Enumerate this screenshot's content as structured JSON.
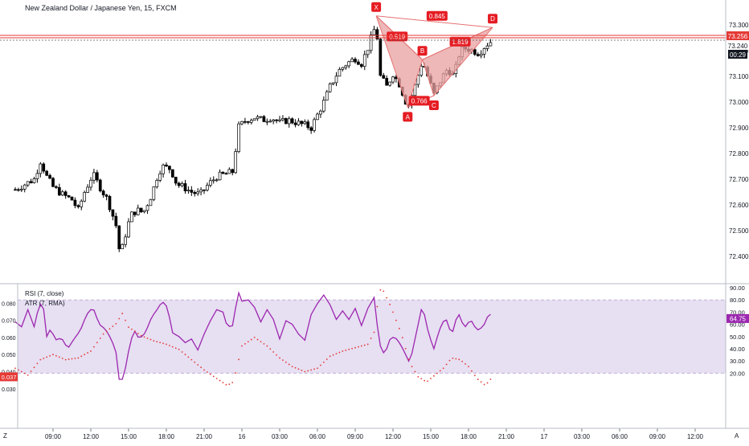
{
  "header": {
    "symbol_title": "New Zealand Dollar / Japanese Yen, 15, FXCM",
    "rsi_label": "RSI (7, close)",
    "atr_label": "ATR (7, RMA)",
    "time_label": "09:00",
    "corner_left": "Z",
    "corner_right": "A"
  },
  "colors": {
    "up_candle": "#ffffff",
    "down_candle": "#000000",
    "candle_border": "#000000",
    "pattern_fill": "#e8a0a0",
    "pattern_stroke": "#e57373",
    "point_label_bg": "#e51c23",
    "rsi_line": "#9c27b0",
    "rsi_band": "#e7dff2",
    "atr_dots": "#e53935",
    "price_line_red": "#e53935"
  },
  "price_badges": {
    "high_line": "73.256",
    "current": "73.240",
    "countdown": "00:29"
  },
  "rsi_badge": "64.75",
  "atr_badge": "0.037",
  "pattern": {
    "points": [
      {
        "label": "X",
        "time": 1540,
        "price": 73.335
      },
      {
        "label": "A",
        "time": 1690,
        "price": 72.98
      },
      {
        "label": "B",
        "time": 1760,
        "price": 73.165
      },
      {
        "label": "C",
        "time": 1815,
        "price": 73.025
      },
      {
        "label": "D",
        "time": 2095,
        "price": 73.29
      }
    ],
    "ratios": [
      {
        "label": "0.845",
        "time": 1830,
        "price": 73.335
      },
      {
        "label": "0.519",
        "time": 1640,
        "price": 73.255
      },
      {
        "label": "0.766",
        "time": 1745,
        "price": 73.005
      },
      {
        "label": "1.819",
        "time": 1940,
        "price": 73.235
      }
    ]
  },
  "chart_data": {
    "type": "candlestick",
    "title": "New Zealand Dollar / Japanese Yen, 15, FXCM",
    "timeframe_minutes": 15,
    "x_unit": "minutes from first tick label (09:00 of previous day)",
    "x_ticks": [
      {
        "label": "09:00",
        "t": 0
      },
      {
        "label": "12:00",
        "t": 180
      },
      {
        "label": "15:00",
        "t": 360
      },
      {
        "label": "18:00",
        "t": 540
      },
      {
        "label": "21:00",
        "t": 720
      },
      {
        "label": "16",
        "t": 900
      },
      {
        "label": "03:00",
        "t": 1080
      },
      {
        "label": "06:00",
        "t": 1260
      },
      {
        "label": "09:00",
        "t": 1440
      },
      {
        "label": "12:00",
        "t": 1620
      },
      {
        "label": "15:00",
        "t": 1800
      },
      {
        "label": "18:00",
        "t": 1980
      },
      {
        "label": "21:00",
        "t": 2160
      },
      {
        "label": "17",
        "t": 2340
      },
      {
        "label": "03:00",
        "t": 2520
      },
      {
        "label": "06:00",
        "t": 2700
      },
      {
        "label": "09:00",
        "t": 2880
      },
      {
        "label": "12:00",
        "t": 3060
      }
    ],
    "price_axis": {
      "ticks": [
        "73.300",
        "73.200",
        "73.100",
        "73.000",
        "72.900",
        "72.800",
        "72.700",
        "72.600",
        "72.500",
        "72.400"
      ],
      "range": [
        72.34,
        73.36
      ]
    },
    "close_anchors": [
      {
        "t": -180,
        "close": 72.66
      },
      {
        "t": -135,
        "close": 72.68
      },
      {
        "t": -90,
        "close": 72.7
      },
      {
        "t": -60,
        "close": 72.77
      },
      {
        "t": -30,
        "close": 72.71
      },
      {
        "t": 0,
        "close": 72.67
      },
      {
        "t": 45,
        "close": 72.64
      },
      {
        "t": 90,
        "close": 72.62
      },
      {
        "t": 120,
        "close": 72.58
      },
      {
        "t": 150,
        "close": 72.65
      },
      {
        "t": 190,
        "close": 72.72
      },
      {
        "t": 230,
        "close": 72.66
      },
      {
        "t": 260,
        "close": 72.62
      },
      {
        "t": 300,
        "close": 72.52
      },
      {
        "t": 320,
        "close": 72.4
      },
      {
        "t": 340,
        "close": 72.47
      },
      {
        "t": 370,
        "close": 72.56
      },
      {
        "t": 400,
        "close": 72.58
      },
      {
        "t": 430,
        "close": 72.57
      },
      {
        "t": 470,
        "close": 72.64
      },
      {
        "t": 500,
        "close": 72.72
      },
      {
        "t": 520,
        "close": 72.75
      },
      {
        "t": 560,
        "close": 72.74
      },
      {
        "t": 590,
        "close": 72.68
      },
      {
        "t": 620,
        "close": 72.67
      },
      {
        "t": 660,
        "close": 72.65
      },
      {
        "t": 700,
        "close": 72.64
      },
      {
        "t": 740,
        "close": 72.68
      },
      {
        "t": 780,
        "close": 72.71
      },
      {
        "t": 820,
        "close": 72.72
      },
      {
        "t": 860,
        "close": 72.73
      },
      {
        "t": 880,
        "close": 72.9
      },
      {
        "t": 920,
        "close": 72.93
      },
      {
        "t": 960,
        "close": 72.94
      },
      {
        "t": 1000,
        "close": 72.93
      },
      {
        "t": 1040,
        "close": 72.94
      },
      {
        "t": 1080,
        "close": 72.92
      },
      {
        "t": 1120,
        "close": 72.93
      },
      {
        "t": 1160,
        "close": 72.92
      },
      {
        "t": 1200,
        "close": 72.91
      },
      {
        "t": 1230,
        "close": 72.9
      },
      {
        "t": 1260,
        "close": 72.95
      },
      {
        "t": 1290,
        "close": 73.0
      },
      {
        "t": 1320,
        "close": 73.06
      },
      {
        "t": 1360,
        "close": 73.12
      },
      {
        "t": 1400,
        "close": 73.15
      },
      {
        "t": 1440,
        "close": 73.17
      },
      {
        "t": 1470,
        "close": 73.15
      },
      {
        "t": 1500,
        "close": 73.21
      },
      {
        "t": 1520,
        "close": 73.26
      },
      {
        "t": 1540,
        "close": 73.3
      },
      {
        "t": 1560,
        "close": 73.1
      },
      {
        "t": 1590,
        "close": 73.06
      },
      {
        "t": 1620,
        "close": 73.11
      },
      {
        "t": 1650,
        "close": 73.07
      },
      {
        "t": 1690,
        "close": 72.98
      },
      {
        "t": 1720,
        "close": 73.05
      },
      {
        "t": 1760,
        "close": 73.16
      },
      {
        "t": 1790,
        "close": 73.09
      },
      {
        "t": 1815,
        "close": 73.03
      },
      {
        "t": 1850,
        "close": 73.09
      },
      {
        "t": 1880,
        "close": 73.13
      },
      {
        "t": 1910,
        "close": 73.1
      },
      {
        "t": 1940,
        "close": 73.2
      },
      {
        "t": 1970,
        "close": 73.21
      },
      {
        "t": 2000,
        "close": 73.2
      },
      {
        "t": 2030,
        "close": 73.19
      },
      {
        "t": 2060,
        "close": 73.22
      },
      {
        "t": 2095,
        "close": 73.24
      }
    ],
    "rsi": {
      "name": "RSI (7, close)",
      "range": [
        0,
        100
      ],
      "ticks": [
        20,
        30,
        40,
        50,
        60,
        70,
        80,
        90
      ],
      "band": [
        20,
        80
      ],
      "last": 64.75,
      "anchors": [
        {
          "t": -180,
          "v": 62
        },
        {
          "t": -150,
          "v": 58
        },
        {
          "t": -120,
          "v": 72
        },
        {
          "t": -90,
          "v": 58
        },
        {
          "t": -70,
          "v": 73
        },
        {
          "t": -50,
          "v": 80
        },
        {
          "t": -30,
          "v": 50
        },
        {
          "t": -10,
          "v": 57
        },
        {
          "t": 10,
          "v": 47
        },
        {
          "t": 40,
          "v": 49
        },
        {
          "t": 70,
          "v": 40
        },
        {
          "t": 100,
          "v": 48
        },
        {
          "t": 130,
          "v": 55
        },
        {
          "t": 160,
          "v": 68
        },
        {
          "t": 190,
          "v": 74
        },
        {
          "t": 220,
          "v": 60
        },
        {
          "t": 250,
          "v": 56
        },
        {
          "t": 280,
          "v": 47
        },
        {
          "t": 300,
          "v": 37
        },
        {
          "t": 315,
          "v": 15
        },
        {
          "t": 335,
          "v": 15
        },
        {
          "t": 360,
          "v": 38
        },
        {
          "t": 385,
          "v": 56
        },
        {
          "t": 410,
          "v": 48
        },
        {
          "t": 440,
          "v": 53
        },
        {
          "t": 470,
          "v": 66
        },
        {
          "t": 500,
          "v": 73
        },
        {
          "t": 520,
          "v": 79
        },
        {
          "t": 545,
          "v": 74
        },
        {
          "t": 570,
          "v": 53
        },
        {
          "t": 600,
          "v": 50
        },
        {
          "t": 630,
          "v": 45
        },
        {
          "t": 660,
          "v": 48
        },
        {
          "t": 690,
          "v": 39
        },
        {
          "t": 720,
          "v": 52
        },
        {
          "t": 750,
          "v": 63
        },
        {
          "t": 780,
          "v": 72
        },
        {
          "t": 810,
          "v": 70
        },
        {
          "t": 830,
          "v": 58
        },
        {
          "t": 860,
          "v": 59
        },
        {
          "t": 880,
          "v": 88
        },
        {
          "t": 900,
          "v": 79
        },
        {
          "t": 930,
          "v": 80
        },
        {
          "t": 960,
          "v": 74
        },
        {
          "t": 990,
          "v": 62
        },
        {
          "t": 1020,
          "v": 72
        },
        {
          "t": 1050,
          "v": 64
        },
        {
          "t": 1080,
          "v": 48
        },
        {
          "t": 1110,
          "v": 63
        },
        {
          "t": 1140,
          "v": 60
        },
        {
          "t": 1170,
          "v": 52
        },
        {
          "t": 1200,
          "v": 47
        },
        {
          "t": 1230,
          "v": 68
        },
        {
          "t": 1260,
          "v": 77
        },
        {
          "t": 1290,
          "v": 84
        },
        {
          "t": 1320,
          "v": 76
        },
        {
          "t": 1350,
          "v": 64
        },
        {
          "t": 1380,
          "v": 71
        },
        {
          "t": 1410,
          "v": 64
        },
        {
          "t": 1440,
          "v": 73
        },
        {
          "t": 1470,
          "v": 59
        },
        {
          "t": 1500,
          "v": 73
        },
        {
          "t": 1530,
          "v": 82
        },
        {
          "t": 1555,
          "v": 44
        },
        {
          "t": 1580,
          "v": 35
        },
        {
          "t": 1610,
          "v": 50
        },
        {
          "t": 1640,
          "v": 48
        },
        {
          "t": 1670,
          "v": 39
        },
        {
          "t": 1700,
          "v": 28
        },
        {
          "t": 1730,
          "v": 52
        },
        {
          "t": 1760,
          "v": 76
        },
        {
          "t": 1790,
          "v": 52
        },
        {
          "t": 1815,
          "v": 40
        },
        {
          "t": 1840,
          "v": 55
        },
        {
          "t": 1870,
          "v": 66
        },
        {
          "t": 1900,
          "v": 51
        },
        {
          "t": 1930,
          "v": 70
        },
        {
          "t": 1960,
          "v": 57
        },
        {
          "t": 1990,
          "v": 64
        },
        {
          "t": 2020,
          "v": 55
        },
        {
          "t": 2050,
          "v": 58
        },
        {
          "t": 2080,
          "v": 70
        },
        {
          "t": 2095,
          "v": 64.75
        }
      ]
    },
    "atr": {
      "name": "ATR (7, RMA)",
      "ticks": [
        0.03,
        0.04,
        0.05,
        0.06,
        0.07,
        0.08,
        0.09
      ],
      "range": [
        0.028,
        0.091
      ],
      "last": 0.037,
      "anchors": [
        {
          "t": -180,
          "v": 0.042
        },
        {
          "t": -120,
          "v": 0.038
        },
        {
          "t": -60,
          "v": 0.047
        },
        {
          "t": 0,
          "v": 0.05
        },
        {
          "t": 60,
          "v": 0.047
        },
        {
          "t": 120,
          "v": 0.048
        },
        {
          "t": 180,
          "v": 0.052
        },
        {
          "t": 240,
          "v": 0.062
        },
        {
          "t": 300,
          "v": 0.068
        },
        {
          "t": 330,
          "v": 0.074
        },
        {
          "t": 360,
          "v": 0.066
        },
        {
          "t": 420,
          "v": 0.061
        },
        {
          "t": 480,
          "v": 0.058
        },
        {
          "t": 540,
          "v": 0.056
        },
        {
          "t": 600,
          "v": 0.053
        },
        {
          "t": 660,
          "v": 0.047
        },
        {
          "t": 720,
          "v": 0.041
        },
        {
          "t": 780,
          "v": 0.036
        },
        {
          "t": 830,
          "v": 0.032
        },
        {
          "t": 860,
          "v": 0.034
        },
        {
          "t": 900,
          "v": 0.055
        },
        {
          "t": 960,
          "v": 0.06
        },
        {
          "t": 1020,
          "v": 0.055
        },
        {
          "t": 1080,
          "v": 0.048
        },
        {
          "t": 1140,
          "v": 0.043
        },
        {
          "t": 1200,
          "v": 0.04
        },
        {
          "t": 1260,
          "v": 0.042
        },
        {
          "t": 1320,
          "v": 0.049
        },
        {
          "t": 1380,
          "v": 0.052
        },
        {
          "t": 1440,
          "v": 0.054
        },
        {
          "t": 1500,
          "v": 0.056
        },
        {
          "t": 1530,
          "v": 0.063
        },
        {
          "t": 1555,
          "v": 0.088
        },
        {
          "t": 1575,
          "v": 0.087
        },
        {
          "t": 1610,
          "v": 0.078
        },
        {
          "t": 1660,
          "v": 0.062
        },
        {
          "t": 1700,
          "v": 0.045
        },
        {
          "t": 1740,
          "v": 0.037
        },
        {
          "t": 1780,
          "v": 0.034
        },
        {
          "t": 1820,
          "v": 0.038
        },
        {
          "t": 1860,
          "v": 0.042
        },
        {
          "t": 1900,
          "v": 0.048
        },
        {
          "t": 1940,
          "v": 0.047
        },
        {
          "t": 1980,
          "v": 0.043
        },
        {
          "t": 2020,
          "v": 0.036
        },
        {
          "t": 2060,
          "v": 0.032
        },
        {
          "t": 2095,
          "v": 0.037
        }
      ]
    }
  }
}
